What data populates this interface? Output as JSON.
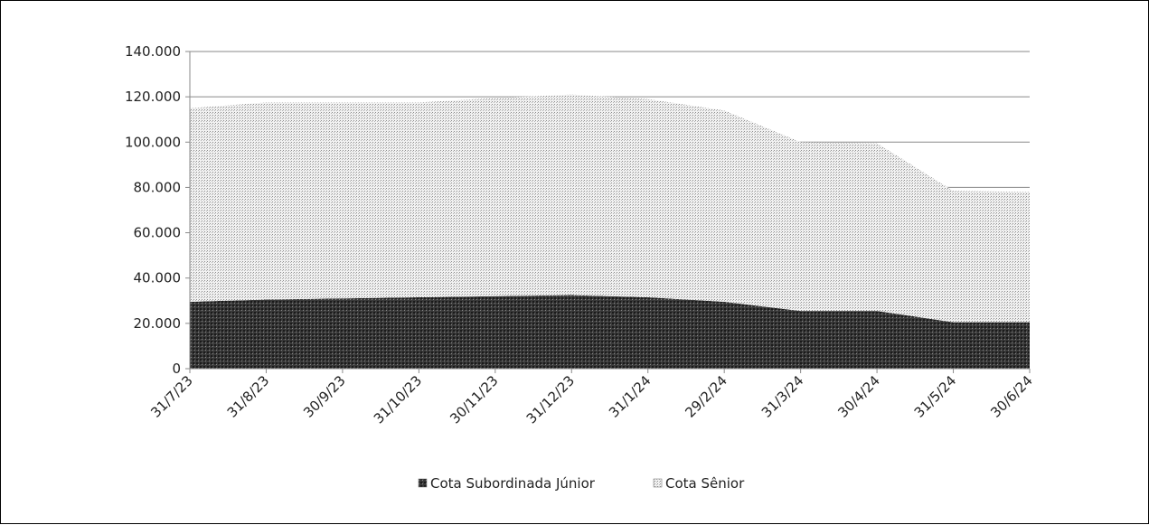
{
  "chart_data": {
    "type": "area",
    "stacked": true,
    "title": "",
    "xlabel": "",
    "ylabel": "",
    "ylim": [
      0,
      140000
    ],
    "yticks": [
      0,
      20000,
      40000,
      60000,
      80000,
      100000,
      120000,
      140000
    ],
    "ytick_labels": [
      "0",
      "20.000",
      "40.000",
      "60.000",
      "80.000",
      "100.000",
      "120.000",
      "140.000"
    ],
    "categories": [
      "31/7/23",
      "31/8/23",
      "30/9/23",
      "31/10/23",
      "30/11/23",
      "31/12/23",
      "31/1/24",
      "29/2/24",
      "31/3/24",
      "30/4/24",
      "31/5/24",
      "30/6/24"
    ],
    "grid": true,
    "legend_position": "bottom",
    "series": [
      {
        "name": "Cota Subordinada Júnior",
        "values": [
          29500,
          30500,
          31000,
          31500,
          32000,
          32500,
          31500,
          29500,
          25500,
          25500,
          20500,
          20500
        ],
        "color": "#2e2e2e"
      },
      {
        "name": "Cota Sênior",
        "values": [
          85500,
          87000,
          86500,
          86000,
          87500,
          88500,
          87500,
          84500,
          74500,
          74000,
          58000,
          57500
        ],
        "color": "#d6d6d6"
      }
    ]
  }
}
